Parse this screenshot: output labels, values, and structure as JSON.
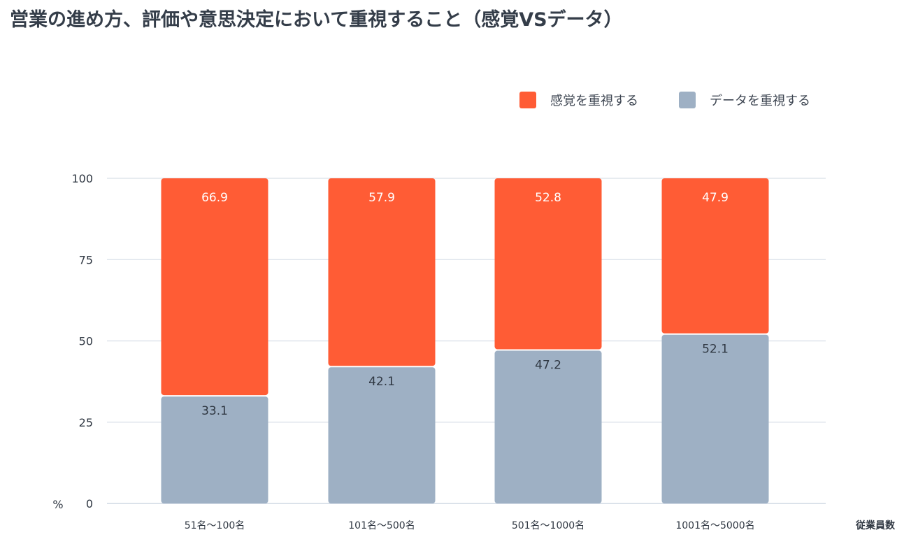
{
  "title": "営業の進め方、評価や意思決定において重視すること（感覚VSデータ）",
  "legend": [
    {
      "label": "感覚を重視する",
      "color": "#ff5c35"
    },
    {
      "label": "データを重視する",
      "color": "#9eb0c4"
    }
  ],
  "chart_data": {
    "type": "bar",
    "stacked": true,
    "title": "営業の進め方、評価や意思決定において重視すること（感覚VSデータ）",
    "categories": [
      "51名〜100名",
      "101名〜500名",
      "501名〜1000名",
      "1001名〜5000名"
    ],
    "series": [
      {
        "name": "データを重視する",
        "color": "#9eb0c4",
        "values": [
          33.1,
          42.1,
          47.2,
          52.1
        ]
      },
      {
        "name": "感覚を重視する",
        "color": "#ff5c35",
        "values": [
          66.9,
          57.9,
          52.8,
          47.9
        ]
      }
    ],
    "value_labels": {
      "データを重視する": [
        "33.1",
        "42.1",
        "47.2",
        "52.1"
      ],
      "感覚を重視する": [
        "66.9",
        "57.9",
        "52.8",
        "47.9"
      ]
    },
    "ylabel": "%",
    "xlabel": "従業員数",
    "ylim": [
      0,
      100
    ],
    "yticks": [
      0,
      25,
      50,
      75,
      100
    ],
    "ytick_labels": [
      "0",
      "25",
      "50",
      "75",
      "100"
    ],
    "grid": true,
    "legend_position": "top-right"
  }
}
